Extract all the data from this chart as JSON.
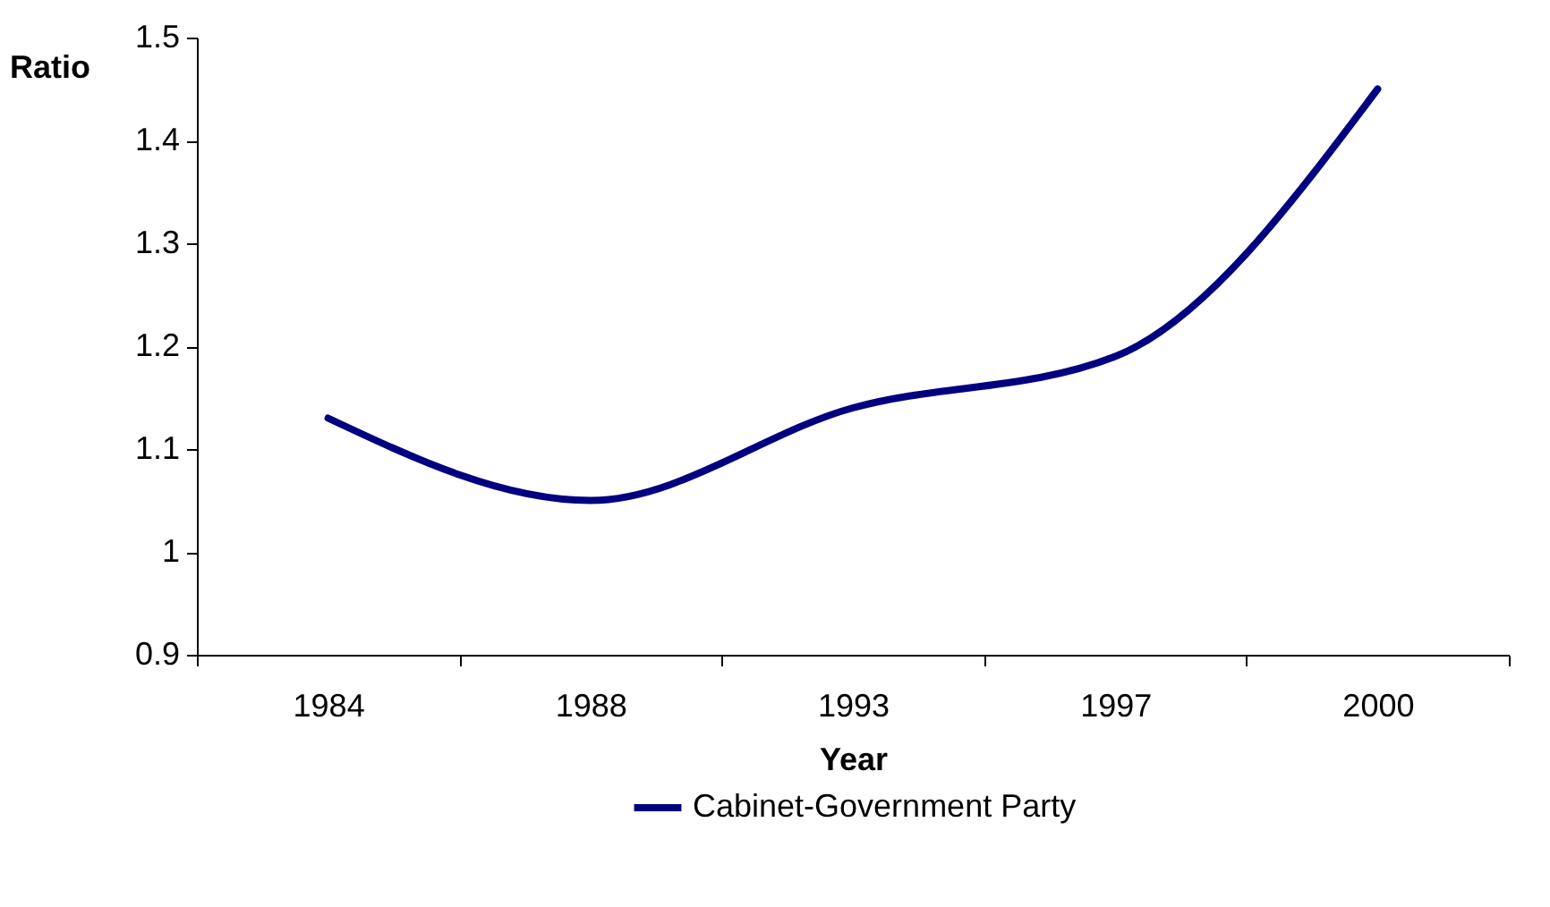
{
  "chart_data": {
    "type": "line",
    "xlabel": "Year",
    "ylabel": "Ratio",
    "categories": [
      "1984",
      "1988",
      "1993",
      "1997",
      "2000"
    ],
    "series": [
      {
        "name": "Cabinet-Government Party",
        "color": "#000080",
        "values": [
          1.13,
          1.05,
          1.14,
          1.19,
          1.45
        ]
      }
    ],
    "ylim": [
      0.9,
      1.5
    ],
    "yticks": [
      0.9,
      1,
      1.1,
      1.2,
      1.3,
      1.4,
      1.5
    ],
    "grid": false,
    "legend": "bottom",
    "marker": "none",
    "line_style": "solid"
  }
}
